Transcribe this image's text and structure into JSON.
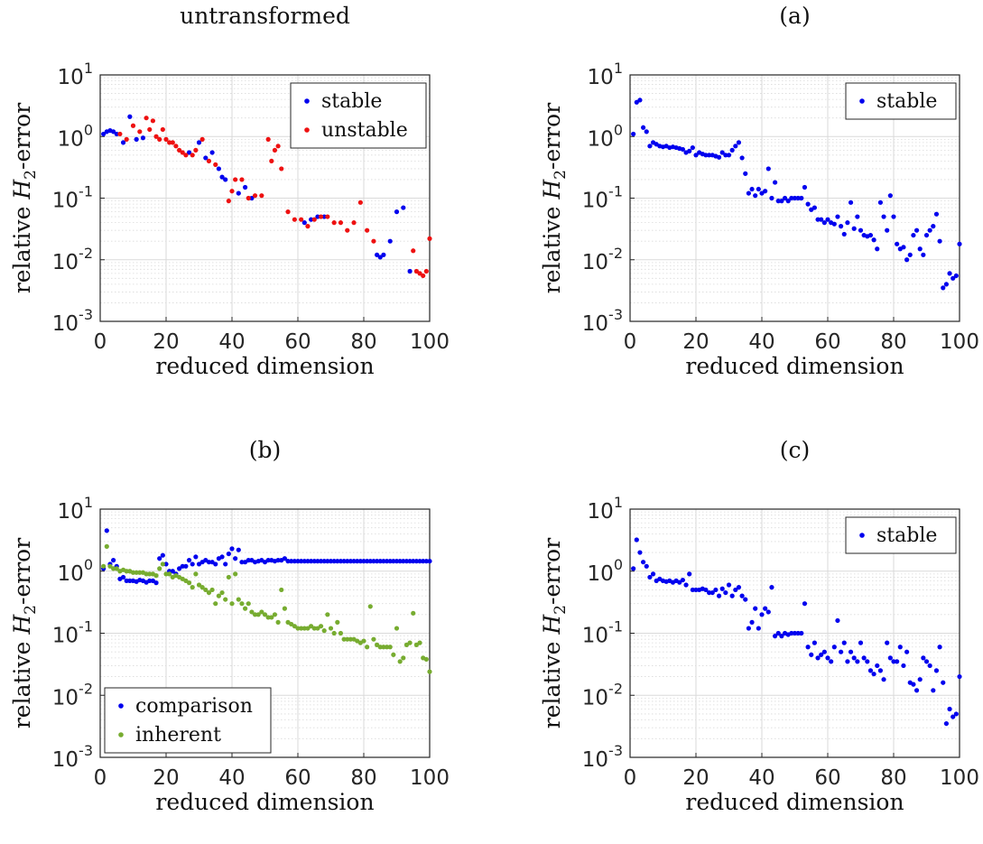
{
  "titles": {
    "top_left": "untransformed",
    "top_right": "(a)",
    "bottom_left": "(b)",
    "bottom_right": "(c)"
  },
  "colors": {
    "stable": "#0000ee",
    "unstable": "#ee1111",
    "comparison": "#0000ee",
    "inherent": "#77ac30",
    "grid": "#dadada",
    "axes": "#262626"
  },
  "chart_data": [
    {
      "id": "untransformed",
      "type": "scatter",
      "title": "untransformed",
      "xlabel": "reduced dimension",
      "ylabel": "relative H2-error",
      "xlim": [
        0,
        100
      ],
      "ylim": [
        0.001,
        10
      ],
      "yscale": "log",
      "xticks": [
        "0",
        "20",
        "40",
        "60",
        "80",
        "100"
      ],
      "yticks": [
        "10^-3",
        "10^-2",
        "10^-1",
        "10^0",
        "10^1"
      ],
      "grid": true,
      "legend": "top-right",
      "series": [
        {
          "name": "stable",
          "color": "#0000ee",
          "x": [
            1,
            2,
            3,
            4,
            5,
            7,
            9,
            11,
            13,
            27,
            30,
            32,
            34,
            36,
            37,
            38,
            42,
            44,
            46,
            62,
            64,
            66,
            68,
            84,
            85,
            86,
            88,
            90,
            92,
            94
          ],
          "y": [
            1.1,
            1.2,
            1.25,
            1.2,
            1.1,
            0.8,
            2.1,
            0.9,
            0.95,
            0.55,
            0.8,
            0.45,
            0.55,
            0.3,
            0.22,
            0.2,
            0.12,
            0.15,
            0.1,
            0.04,
            0.045,
            0.05,
            0.05,
            0.012,
            0.011,
            0.012,
            0.02,
            0.06,
            0.07,
            0.0065
          ]
        },
        {
          "name": "unstable",
          "color": "#ee1111",
          "x": [
            6,
            8,
            10,
            12,
            14,
            15,
            16,
            17,
            18,
            19,
            20,
            21,
            22,
            23,
            24,
            25,
            26,
            28,
            29,
            31,
            33,
            35,
            39,
            40,
            41,
            43,
            45,
            47,
            49,
            51,
            52,
            53,
            54,
            55,
            57,
            59,
            61,
            63,
            65,
            67,
            69,
            71,
            73,
            75,
            77,
            79,
            81,
            83,
            95,
            96,
            97,
            98,
            99,
            100
          ],
          "y": [
            1.1,
            0.9,
            1.5,
            1.2,
            2.0,
            1.3,
            1.8,
            1.0,
            0.9,
            1.3,
            0.9,
            0.8,
            0.8,
            0.7,
            0.6,
            0.55,
            0.5,
            0.5,
            0.6,
            0.9,
            0.4,
            0.35,
            0.09,
            0.13,
            0.2,
            0.2,
            0.1,
            0.11,
            0.11,
            0.9,
            0.4,
            0.6,
            0.7,
            0.3,
            0.06,
            0.045,
            0.045,
            0.035,
            0.045,
            0.05,
            0.05,
            0.04,
            0.04,
            0.03,
            0.04,
            0.085,
            0.03,
            0.02,
            0.014,
            0.0065,
            0.006,
            0.0055,
            0.0065,
            0.022
          ]
        }
      ]
    },
    {
      "id": "a",
      "type": "scatter",
      "title": "(a)",
      "xlabel": "reduced dimension",
      "ylabel": "relative H2-error",
      "xlim": [
        0,
        100
      ],
      "ylim": [
        0.001,
        10
      ],
      "yscale": "log",
      "xticks": [
        "0",
        "20",
        "40",
        "60",
        "80",
        "100"
      ],
      "yticks": [
        "10^-3",
        "10^-2",
        "10^-1",
        "10^0",
        "10^1"
      ],
      "grid": true,
      "legend": "top-right",
      "series": [
        {
          "name": "stable",
          "color": "#0000ee",
          "x": [
            1,
            2,
            3,
            4,
            5,
            6,
            7,
            8,
            9,
            10,
            11,
            12,
            13,
            14,
            15,
            16,
            17,
            18,
            19,
            20,
            21,
            22,
            23,
            24,
            25,
            26,
            27,
            28,
            29,
            30,
            31,
            32,
            33,
            34,
            35,
            36,
            37,
            38,
            39,
            40,
            41,
            42,
            43,
            44,
            45,
            46,
            47,
            48,
            49,
            50,
            51,
            52,
            53,
            54,
            55,
            56,
            57,
            58,
            59,
            60,
            61,
            62,
            63,
            64,
            65,
            66,
            67,
            68,
            69,
            70,
            71,
            72,
            73,
            74,
            75,
            76,
            77,
            78,
            79,
            80,
            81,
            82,
            83,
            84,
            85,
            86,
            87,
            88,
            89,
            90,
            91,
            92,
            93,
            94,
            95,
            96,
            97,
            98,
            99,
            100
          ],
          "y": [
            1.1,
            3.6,
            3.9,
            1.4,
            1.2,
            0.7,
            0.8,
            0.75,
            0.7,
            0.68,
            0.7,
            0.66,
            0.68,
            0.66,
            0.64,
            0.62,
            0.55,
            0.58,
            0.66,
            0.5,
            0.55,
            0.52,
            0.5,
            0.5,
            0.5,
            0.48,
            0.46,
            0.55,
            0.5,
            0.5,
            0.6,
            0.7,
            0.8,
            0.45,
            0.25,
            0.12,
            0.14,
            0.11,
            0.14,
            0.12,
            0.13,
            0.3,
            0.1,
            0.18,
            0.09,
            0.09,
            0.1,
            0.09,
            0.1,
            0.1,
            0.1,
            0.1,
            0.15,
            0.08,
            0.065,
            0.07,
            0.045,
            0.045,
            0.04,
            0.045,
            0.04,
            0.038,
            0.05,
            0.035,
            0.026,
            0.04,
            0.085,
            0.032,
            0.05,
            0.03,
            0.025,
            0.024,
            0.025,
            0.021,
            0.015,
            0.085,
            0.05,
            0.03,
            0.11,
            0.05,
            0.018,
            0.015,
            0.016,
            0.01,
            0.012,
            0.025,
            0.03,
            0.015,
            0.012,
            0.025,
            0.03,
            0.035,
            0.055,
            0.02,
            0.0035,
            0.004,
            0.006,
            0.005,
            0.0055,
            0.018
          ]
        }
      ]
    },
    {
      "id": "b",
      "type": "scatter",
      "title": "(b)",
      "xlabel": "reduced dimension",
      "ylabel": "relative H2-error",
      "xlim": [
        0,
        100
      ],
      "ylim": [
        0.001,
        10
      ],
      "yscale": "log",
      "xticks": [
        "0",
        "20",
        "40",
        "60",
        "80",
        "100"
      ],
      "yticks": [
        "10^-3",
        "10^-2",
        "10^-1",
        "10^0",
        "10^1"
      ],
      "grid": true,
      "legend": "bottom-left",
      "series": [
        {
          "name": "comparison",
          "color": "#0000ee",
          "x": [
            1,
            2,
            3,
            4,
            5,
            6,
            7,
            8,
            9,
            10,
            11,
            12,
            13,
            14,
            15,
            16,
            17,
            18,
            19,
            20,
            21,
            22,
            23,
            24,
            25,
            26,
            27,
            28,
            29,
            30,
            31,
            32,
            33,
            34,
            35,
            36,
            37,
            38,
            39,
            40,
            41,
            42,
            43,
            44,
            45,
            46,
            47,
            48,
            49,
            50,
            51,
            52,
            53,
            54,
            55,
            56,
            57,
            58,
            59,
            60,
            61,
            62,
            63,
            64,
            65,
            66,
            67,
            68,
            69,
            70,
            71,
            72,
            73,
            74,
            75,
            76,
            77,
            78,
            79,
            80,
            81,
            82,
            83,
            84,
            85,
            86,
            87,
            88,
            89,
            90,
            91,
            92,
            93,
            94,
            95,
            96,
            97,
            98,
            99,
            100
          ],
          "y": [
            1.1,
            4.5,
            1.3,
            1.5,
            1.2,
            0.75,
            0.8,
            0.7,
            0.7,
            0.7,
            0.68,
            0.72,
            0.7,
            0.66,
            0.7,
            0.7,
            0.65,
            1.6,
            1.8,
            1.3,
            1.0,
            1.0,
            0.9,
            1.1,
            1.2,
            1.2,
            1.5,
            1.3,
            1.7,
            1.3,
            1.4,
            1.5,
            1.4,
            1.4,
            1.3,
            1.6,
            1.7,
            1.3,
            1.9,
            2.3,
            1.6,
            2.2,
            1.4,
            1.4,
            1.5,
            1.5,
            1.4,
            1.45,
            1.5,
            1.4,
            1.5,
            1.5,
            1.45,
            1.5,
            1.5,
            1.6,
            1.45,
            1.45,
            1.45,
            1.45,
            1.45,
            1.45,
            1.45,
            1.45,
            1.45,
            1.45,
            1.45,
            1.45,
            1.45,
            1.45,
            1.45,
            1.45,
            1.45,
            1.45,
            1.45,
            1.45,
            1.45,
            1.45,
            1.45,
            1.45,
            1.45,
            1.45,
            1.45,
            1.45,
            1.45,
            1.45,
            1.45,
            1.45,
            1.45,
            1.45,
            1.45,
            1.45,
            1.45,
            1.45,
            1.45,
            1.45,
            1.45,
            1.45,
            1.45,
            1.45
          ]
        },
        {
          "name": "inherent",
          "color": "#77ac30",
          "x": [
            1,
            2,
            3,
            4,
            5,
            6,
            7,
            8,
            9,
            10,
            11,
            12,
            13,
            14,
            15,
            16,
            17,
            18,
            19,
            20,
            21,
            22,
            23,
            24,
            25,
            26,
            27,
            28,
            29,
            30,
            31,
            32,
            33,
            34,
            35,
            36,
            37,
            38,
            39,
            40,
            41,
            42,
            43,
            44,
            45,
            46,
            47,
            48,
            49,
            50,
            51,
            52,
            53,
            54,
            55,
            56,
            57,
            58,
            59,
            60,
            61,
            62,
            63,
            64,
            65,
            66,
            67,
            68,
            69,
            70,
            71,
            72,
            73,
            74,
            75,
            76,
            77,
            78,
            79,
            80,
            81,
            82,
            83,
            84,
            85,
            86,
            87,
            88,
            89,
            90,
            91,
            92,
            93,
            94,
            95,
            96,
            97,
            98,
            99,
            100
          ],
          "y": [
            1.2,
            2.5,
            1.2,
            1.1,
            1.1,
            1.0,
            1.05,
            1.0,
            1.0,
            0.95,
            0.95,
            0.95,
            0.95,
            0.9,
            0.9,
            0.9,
            0.85,
            1.1,
            1.3,
            0.9,
            0.9,
            0.8,
            0.85,
            0.8,
            0.75,
            0.7,
            0.65,
            0.55,
            0.9,
            0.6,
            0.55,
            0.5,
            0.45,
            0.5,
            0.3,
            0.4,
            0.45,
            0.35,
            0.8,
            0.3,
            0.9,
            0.35,
            0.3,
            0.25,
            0.3,
            0.22,
            0.2,
            0.2,
            0.22,
            0.2,
            0.18,
            0.18,
            0.2,
            0.15,
            0.5,
            0.25,
            0.15,
            0.14,
            0.13,
            0.12,
            0.12,
            0.12,
            0.12,
            0.13,
            0.12,
            0.12,
            0.13,
            0.11,
            0.2,
            0.12,
            0.1,
            0.15,
            0.1,
            0.08,
            0.08,
            0.08,
            0.08,
            0.075,
            0.07,
            0.075,
            0.06,
            0.27,
            0.08,
            0.065,
            0.06,
            0.06,
            0.06,
            0.06,
            0.045,
            0.12,
            0.035,
            0.04,
            0.065,
            0.07,
            0.21,
            0.065,
            0.07,
            0.04,
            0.038,
            0.024
          ]
        }
      ]
    },
    {
      "id": "c",
      "type": "scatter",
      "title": "(c)",
      "xlabel": "reduced dimension",
      "ylabel": "relative H2-error",
      "xlim": [
        0,
        100
      ],
      "ylim": [
        0.001,
        10
      ],
      "yscale": "log",
      "xticks": [
        "0",
        "20",
        "40",
        "60",
        "80",
        "100"
      ],
      "yticks": [
        "10^-3",
        "10^-2",
        "10^-1",
        "10^0",
        "10^1"
      ],
      "grid": true,
      "legend": "top-right",
      "series": [
        {
          "name": "stable",
          "color": "#0000ee",
          "x": [
            1,
            2,
            3,
            4,
            5,
            6,
            7,
            8,
            9,
            10,
            11,
            12,
            13,
            14,
            15,
            16,
            17,
            18,
            19,
            20,
            21,
            22,
            23,
            24,
            25,
            26,
            27,
            28,
            29,
            30,
            31,
            32,
            33,
            34,
            35,
            36,
            37,
            38,
            39,
            40,
            41,
            42,
            43,
            44,
            45,
            46,
            47,
            48,
            49,
            50,
            51,
            52,
            53,
            54,
            55,
            56,
            57,
            58,
            59,
            60,
            61,
            62,
            63,
            64,
            65,
            66,
            67,
            68,
            69,
            70,
            71,
            72,
            73,
            74,
            75,
            76,
            77,
            78,
            79,
            80,
            81,
            82,
            83,
            84,
            85,
            86,
            87,
            88,
            89,
            90,
            91,
            92,
            93,
            94,
            95,
            96,
            97,
            98,
            99,
            100
          ],
          "y": [
            1.1,
            3.2,
            2.0,
            1.4,
            1.2,
            0.8,
            0.9,
            0.7,
            0.75,
            0.7,
            0.68,
            0.7,
            0.66,
            0.7,
            0.66,
            0.72,
            0.6,
            0.9,
            0.5,
            0.5,
            0.5,
            0.52,
            0.5,
            0.45,
            0.45,
            0.5,
            0.4,
            0.52,
            0.45,
            0.6,
            0.4,
            0.5,
            0.55,
            0.4,
            0.35,
            0.12,
            0.15,
            0.25,
            0.12,
            0.2,
            0.25,
            0.22,
            0.55,
            0.09,
            0.1,
            0.09,
            0.1,
            0.095,
            0.1,
            0.1,
            0.1,
            0.1,
            0.3,
            0.06,
            0.045,
            0.07,
            0.04,
            0.045,
            0.05,
            0.04,
            0.035,
            0.06,
            0.16,
            0.05,
            0.07,
            0.035,
            0.05,
            0.04,
            0.035,
            0.07,
            0.04,
            0.035,
            0.025,
            0.022,
            0.03,
            0.025,
            0.018,
            0.07,
            0.04,
            0.035,
            0.035,
            0.06,
            0.03,
            0.05,
            0.016,
            0.015,
            0.012,
            0.018,
            0.04,
            0.035,
            0.03,
            0.012,
            0.025,
            0.06,
            0.016,
            0.0035,
            0.006,
            0.0045,
            0.005,
            0.02
          ]
        }
      ]
    }
  ]
}
